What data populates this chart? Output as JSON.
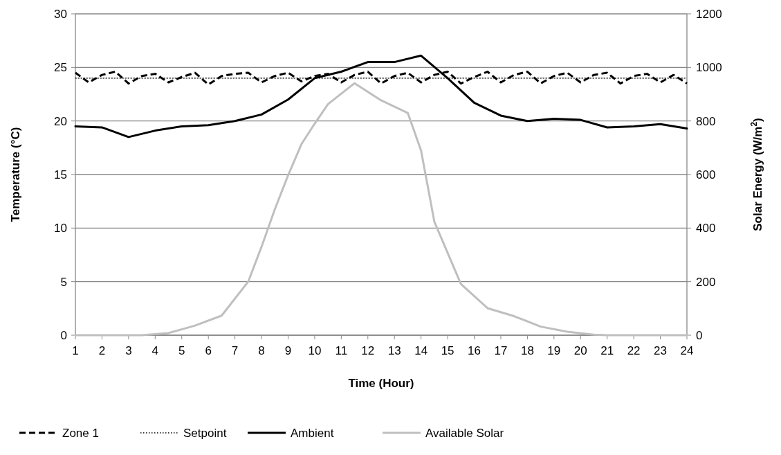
{
  "chart_data": {
    "type": "line",
    "xlabel": "Time (Hour)",
    "ylabel": "Temperature (°C)",
    "y2label": "Solar Energy (W/m$^{2}$)",
    "xlim": [
      1,
      24
    ],
    "xticks": [
      1,
      2,
      3,
      4,
      5,
      6,
      7,
      8,
      9,
      10,
      11,
      12,
      13,
      14,
      15,
      16,
      17,
      18,
      19,
      20,
      21,
      22,
      23,
      24
    ],
    "ylim": [
      0,
      30
    ],
    "yticks": [
      0,
      5,
      10,
      15,
      20,
      25,
      30
    ],
    "y2lim": [
      0,
      1200
    ],
    "y2ticks": [
      0,
      200,
      400,
      600,
      800,
      1000,
      1200
    ],
    "grid": "y",
    "legend": "bottom",
    "marker": "none",
    "series": [
      {
        "name": "Zone 1",
        "color": "#000000",
        "line_style": "dashed",
        "x": [
          1,
          1.5,
          2,
          2.5,
          3,
          3.5,
          4,
          4.5,
          5,
          5.5,
          6,
          6.5,
          7,
          7.5,
          8,
          8.5,
          9,
          9.5,
          10,
          10.5,
          11,
          11.5,
          12,
          12.5,
          13,
          13.5,
          14,
          14.5,
          15,
          15.5,
          16,
          16.5,
          17,
          17.5,
          18,
          18.5,
          19,
          19.5,
          20,
          20.5,
          21,
          21.5,
          22,
          22.5,
          23,
          23.5,
          24
        ],
        "values": [
          24.5,
          23.6,
          24.3,
          24.6,
          23.5,
          24.2,
          24.4,
          23.6,
          24.1,
          24.5,
          23.4,
          24.2,
          24.4,
          24.5,
          23.6,
          24.2,
          24.5,
          23.7,
          24.2,
          24.4,
          23.6,
          24.3,
          24.6,
          23.5,
          24.2,
          24.5,
          23.6,
          24.3,
          24.6,
          23.5,
          24.1,
          24.6,
          23.6,
          24.3,
          24.6,
          23.5,
          24.2,
          24.5,
          23.6,
          24.3,
          24.5,
          23.5,
          24.2,
          24.4,
          23.6,
          24.3,
          23.5
        ]
      },
      {
        "name": "Setpoint",
        "color": "#000000",
        "line_style": "dotted",
        "x": [
          1,
          24
        ],
        "values": [
          24,
          24
        ]
      },
      {
        "name": "Ambient",
        "color": "#000000",
        "line_style": "solid",
        "x": [
          1,
          2,
          3,
          4,
          5,
          6,
          7,
          8,
          9,
          10,
          11,
          12,
          13,
          14,
          15,
          16,
          17,
          18,
          19,
          20,
          21,
          22,
          23,
          24
        ],
        "values": [
          19.5,
          19.4,
          18.5,
          19.1,
          19.5,
          19.6,
          20.0,
          20.6,
          22.0,
          24.0,
          24.6,
          25.5,
          25.5,
          26.1,
          24.0,
          21.7,
          20.5,
          20.0,
          20.2,
          20.1,
          19.4,
          19.5,
          19.7,
          19.3
        ]
      },
      {
        "name": "Available Solar",
        "color": "#bfbfbf",
        "line_style": "solid",
        "axis": "y2",
        "x": [
          1,
          2,
          3,
          3.5,
          4.5,
          5.5,
          6.5,
          7.5,
          8,
          8.5,
          9,
          9.5,
          10,
          10.5,
          11.5,
          12.5,
          13.5,
          14,
          14.5,
          15.5,
          16.5,
          17.5,
          18.5,
          19.5,
          20.5,
          21,
          22,
          23,
          24
        ],
        "values": [
          0,
          0,
          0,
          0,
          8,
          36,
          73,
          200,
          330,
          470,
          597,
          713,
          790,
          863,
          941,
          877,
          830,
          690,
          424,
          191,
          101,
          71,
          32,
          13,
          2,
          0,
          0,
          0,
          0
        ]
      }
    ]
  }
}
